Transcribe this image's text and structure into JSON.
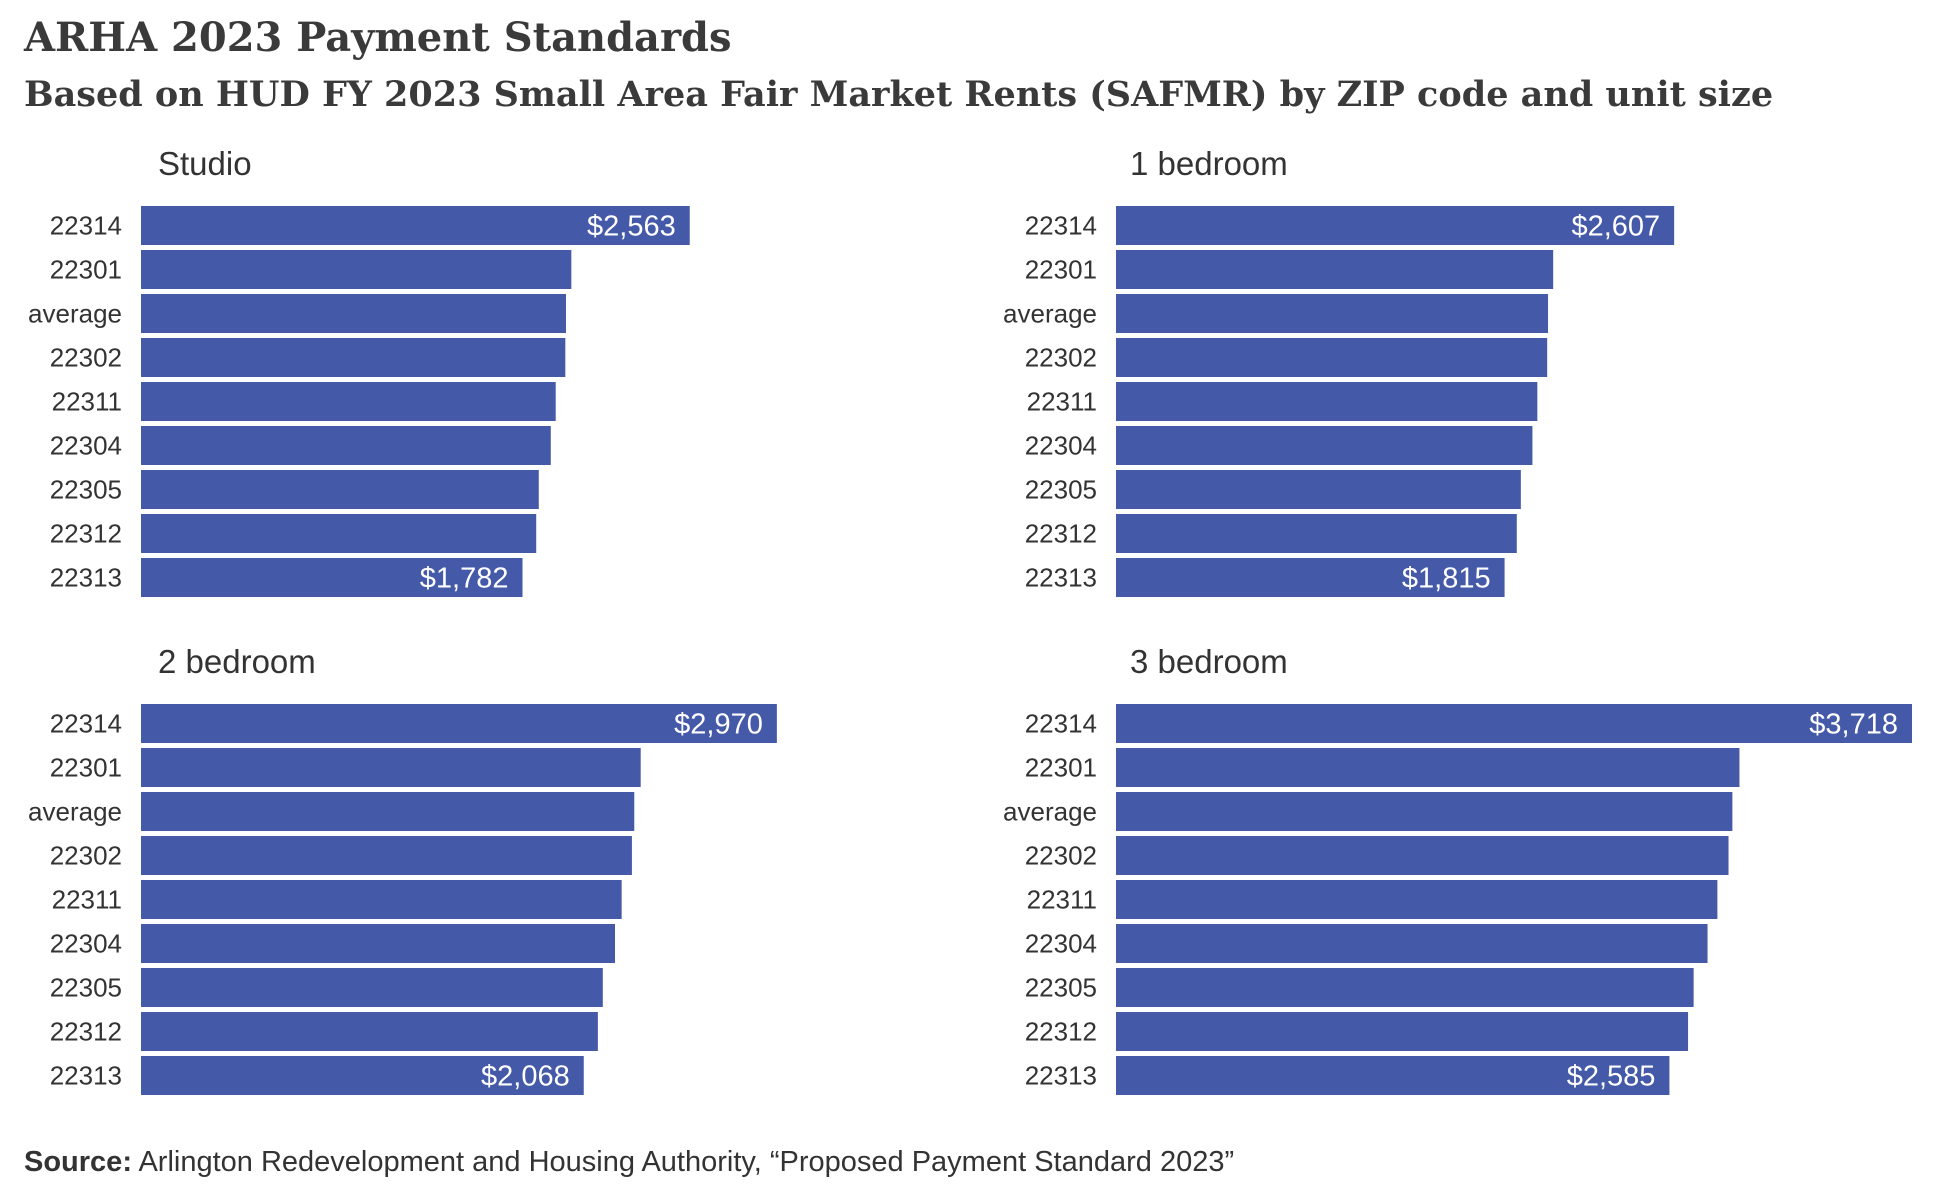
{
  "title": "ARHA 2023 Payment Standards",
  "subtitle": "Based on HUD FY 2023 Small Area Fair Market Rents (SAFMR) by ZIP code and unit size",
  "source": {
    "label": "Source:",
    "text": " Arlington Redevelopment and Housing Authority, “Proposed Payment Standard 2023”"
  },
  "colors": {
    "bar": "#4459A8",
    "label_in_bar": "#ffffff"
  },
  "chart_data": [
    {
      "type": "bar",
      "orientation": "horizontal",
      "title": "Studio",
      "categories": [
        "22314",
        "22301",
        "average",
        "22302",
        "22311",
        "22304",
        "22305",
        "22312",
        "22313"
      ],
      "values": [
        2563,
        2010,
        1985,
        1982,
        1937,
        1914,
        1858,
        1846,
        1782
      ],
      "labeled": [
        true,
        false,
        false,
        false,
        false,
        false,
        false,
        false,
        true
      ],
      "value_labels": [
        "$2,563",
        "",
        "",
        "",
        "",
        "",
        "",
        "",
        "$1,782"
      ],
      "xlim": [
        0,
        3718
      ]
    },
    {
      "type": "bar",
      "orientation": "horizontal",
      "title": "1 bedroom",
      "categories": [
        "22314",
        "22301",
        "average",
        "22302",
        "22311",
        "22304",
        "22305",
        "22312",
        "22313"
      ],
      "values": [
        2607,
        2042,
        2018,
        2014,
        1968,
        1945,
        1891,
        1872,
        1815
      ],
      "labeled": [
        true,
        false,
        false,
        false,
        false,
        false,
        false,
        false,
        true
      ],
      "value_labels": [
        "$2,607",
        "",
        "",
        "",
        "",
        "",
        "",
        "",
        "$1,815"
      ],
      "xlim": [
        0,
        3718
      ]
    },
    {
      "type": "bar",
      "orientation": "horizontal",
      "title": "2 bedroom",
      "categories": [
        "22314",
        "22301",
        "average",
        "22302",
        "22311",
        "22304",
        "22305",
        "22312",
        "22313"
      ],
      "values": [
        2970,
        2334,
        2304,
        2293,
        2245,
        2214,
        2157,
        2134,
        2068
      ],
      "labeled": [
        true,
        false,
        false,
        false,
        false,
        false,
        false,
        false,
        true
      ],
      "value_labels": [
        "$2,970",
        "",
        "",
        "",
        "",
        "",
        "",
        "",
        "$2,068"
      ],
      "xlim": [
        0,
        3718
      ]
    },
    {
      "type": "bar",
      "orientation": "horizontal",
      "title": "3 bedroom",
      "categories": [
        "22314",
        "22301",
        "average",
        "22302",
        "22311",
        "22304",
        "22305",
        "22312",
        "22313"
      ],
      "values": [
        3718,
        2912,
        2879,
        2861,
        2809,
        2763,
        2698,
        2672,
        2585
      ],
      "labeled": [
        true,
        false,
        false,
        false,
        false,
        false,
        false,
        false,
        true
      ],
      "value_labels": [
        "$3,718",
        "",
        "",
        "",
        "",
        "",
        "",
        "",
        "$2,585"
      ],
      "xlim": [
        0,
        3718
      ]
    }
  ]
}
